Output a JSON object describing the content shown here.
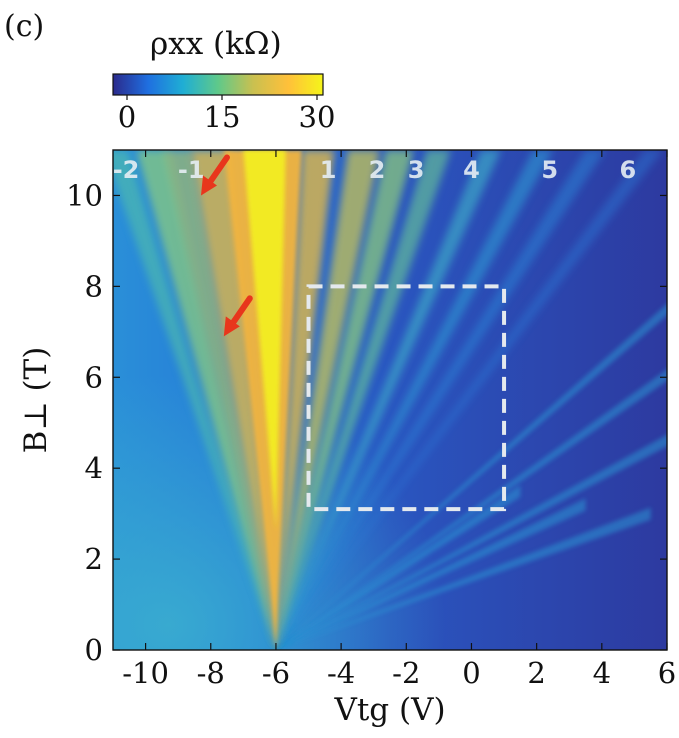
{
  "panel_label": "(c)",
  "colorbar": {
    "label": "ρxx (kΩ)",
    "ticks": [
      "0",
      "15",
      "30"
    ],
    "range": [
      0,
      30
    ],
    "colors": [
      "#2b2a8c",
      "#1f6fe0",
      "#1faed4",
      "#5fc98a",
      "#c9c050",
      "#ffc03a",
      "#f5f51a"
    ]
  },
  "chart_data": {
    "type": "heatmap",
    "title": "",
    "xlabel": "Vtg (V)",
    "ylabel": "B⊥ (T)",
    "xlim": [
      -11,
      6
    ],
    "ylim": [
      0,
      11
    ],
    "xticks": [
      -10,
      -8,
      -6,
      -4,
      -2,
      0,
      2,
      4,
      6
    ],
    "xtick_labels": [
      "-10",
      "-8",
      "-6",
      "-4",
      "-2",
      "0",
      "2",
      "4",
      "6"
    ],
    "yticks": [
      0,
      2,
      4,
      6,
      8,
      10
    ],
    "ytick_labels": [
      "0",
      "2",
      "4",
      "6",
      "8",
      "10"
    ],
    "charge_neutrality_point": {
      "x": -6,
      "y": 0
    },
    "landau_levels": [
      {
        "label": "-2",
        "x": -10.6
      },
      {
        "label": "-1",
        "x": -8.6
      },
      {
        "label": "1",
        "x": -4.4
      },
      {
        "label": "2",
        "x": -2.9
      },
      {
        "label": "3",
        "x": -1.7
      },
      {
        "label": "4",
        "x": 0.0
      },
      {
        "label": "5",
        "x": 2.4
      },
      {
        "label": "6",
        "x": 4.8
      }
    ],
    "arrows": [
      {
        "name": "arrow-upper",
        "tip": {
          "x": -8.3,
          "y": 10.0
        }
      },
      {
        "name": "arrow-lower",
        "tip": {
          "x": -7.6,
          "y": 6.9
        }
      }
    ],
    "dashed_box": {
      "x": [
        -5,
        1
      ],
      "y": [
        3.1,
        8
      ]
    }
  }
}
